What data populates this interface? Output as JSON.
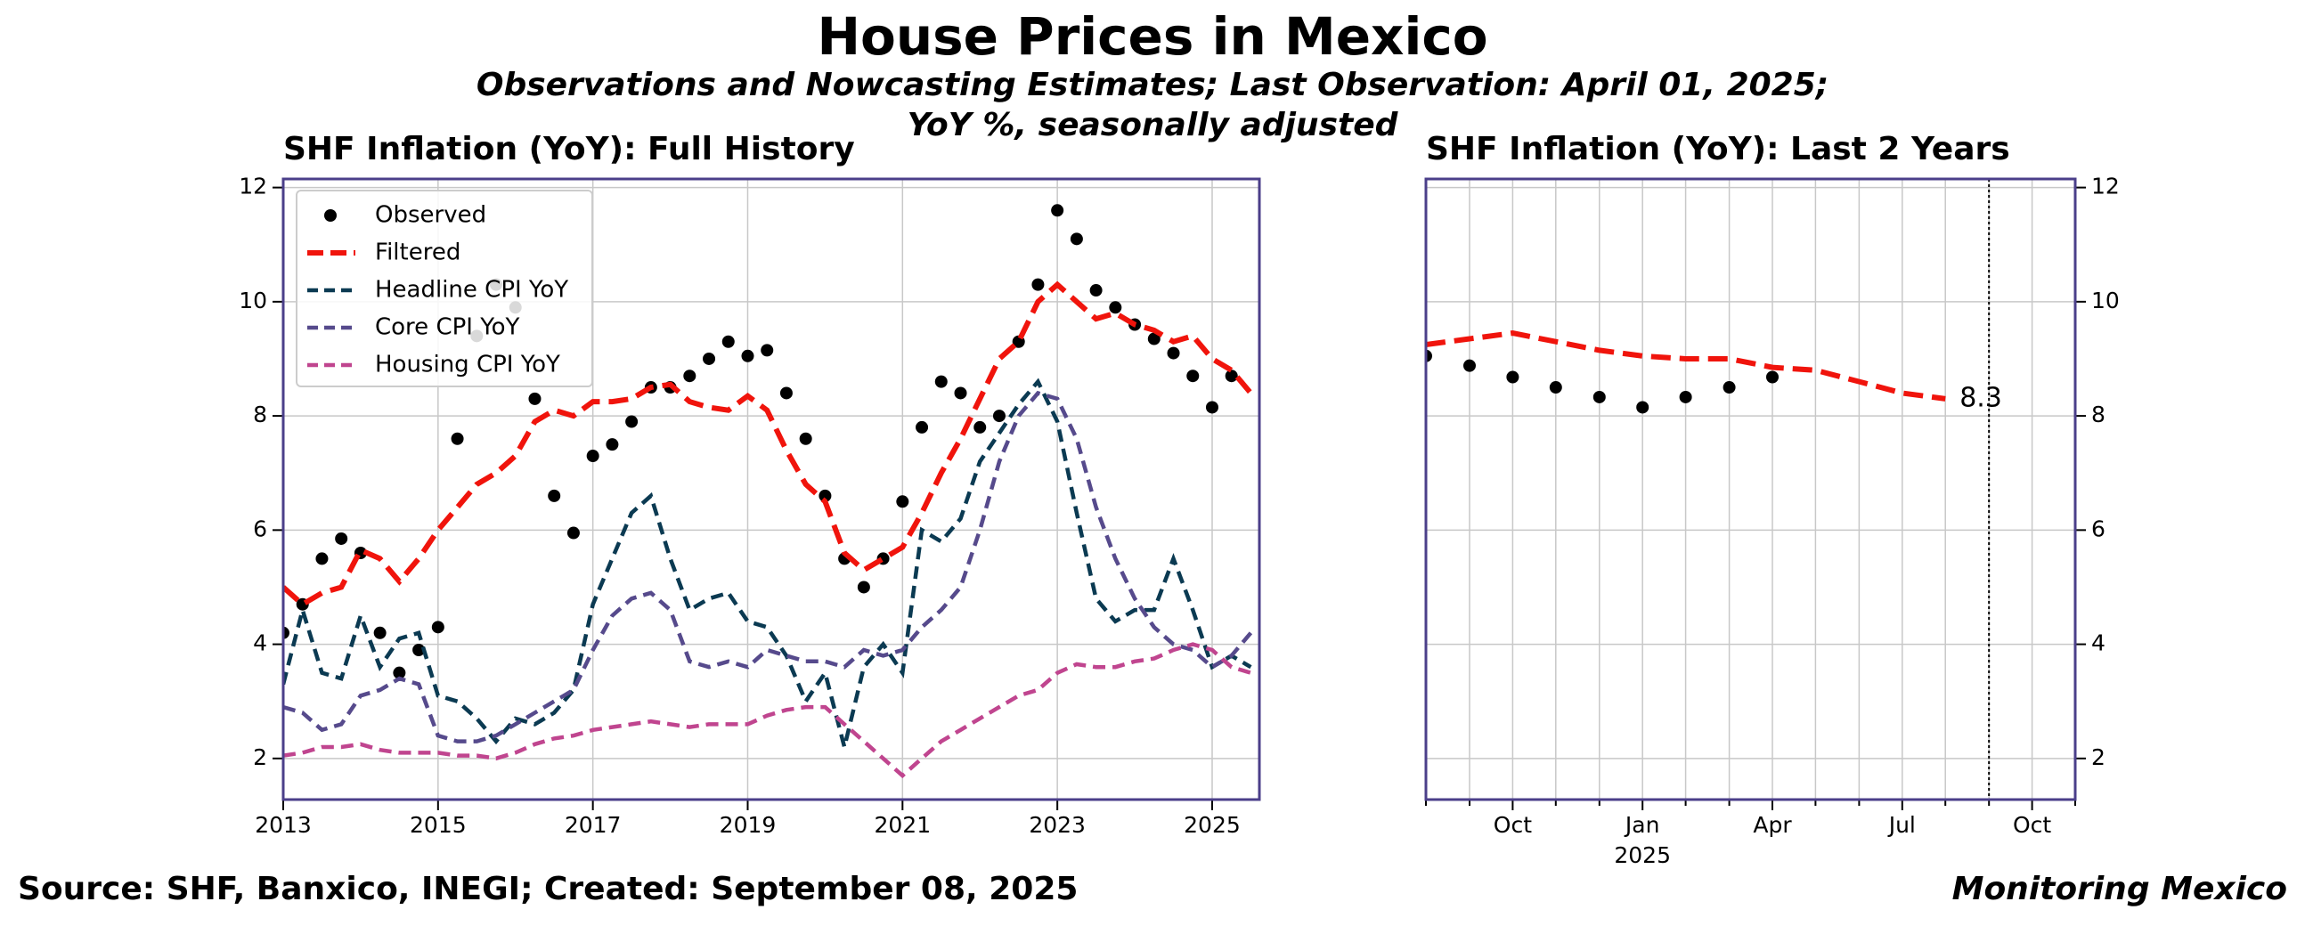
{
  "header": {
    "title": "House Prices in Mexico",
    "subtitle": "Observations and Nowcasting Estimates; Last Observation: April 01, 2025;\nYoY %, seasonally adjusted",
    "source": "Source: SHF, Banxico, INEGI; Created: September 08, 2025",
    "brand": "Monitoring Mexico"
  },
  "chart_data": [
    {
      "type": "line",
      "title": "SHF Inflation (YoY): Full History",
      "legend": "upper left",
      "grid": true,
      "yaxis_side": "left",
      "x": [
        2013.0,
        2013.25,
        2013.5,
        2013.75,
        2014.0,
        2014.25,
        2014.5,
        2014.75,
        2015.0,
        2015.25,
        2015.5,
        2015.75,
        2016.0,
        2016.25,
        2016.5,
        2016.75,
        2017.0,
        2017.25,
        2017.5,
        2017.75,
        2018.0,
        2018.25,
        2018.5,
        2018.75,
        2019.0,
        2019.25,
        2019.5,
        2019.75,
        2020.0,
        2020.25,
        2020.5,
        2020.75,
        2021.0,
        2021.25,
        2021.5,
        2021.75,
        2022.0,
        2022.25,
        2022.5,
        2022.75,
        2023.0,
        2023.25,
        2023.5,
        2023.75,
        2024.0,
        2024.25,
        2024.5,
        2024.75,
        2025.0,
        2025.25,
        2025.5
      ],
      "xlim": [
        2013,
        2025.61
      ],
      "xticks": [
        2013,
        2015,
        2017,
        2019,
        2021,
        2023,
        2025
      ],
      "ylim": [
        1.28,
        12.15
      ],
      "yticks": [
        2,
        4,
        6,
        8,
        10,
        12
      ],
      "series": [
        {
          "name": "Observed",
          "color": "#000000",
          "style": "dots",
          "values": [
            4.2,
            4.7,
            5.5,
            5.85,
            5.6,
            4.2,
            3.5,
            3.9,
            4.3,
            7.6,
            9.4,
            10.3,
            9.9,
            8.3,
            6.6,
            5.95,
            7.3,
            7.5,
            7.9,
            8.5,
            8.5,
            8.7,
            9.0,
            9.3,
            9.05,
            9.15,
            8.4,
            7.6,
            6.6,
            5.5,
            5.0,
            5.5,
            6.5,
            7.8,
            8.6,
            8.4,
            7.8,
            8.0,
            9.3,
            10.3,
            11.6,
            11.1,
            10.2,
            9.9,
            9.6,
            9.35,
            9.1,
            8.7,
            8.15,
            8.7,
            null
          ]
        },
        {
          "name": "Filtered",
          "color": "#f0140c",
          "style": "dashed-thick",
          "values": [
            5.0,
            4.7,
            4.9,
            5.0,
            5.65,
            5.5,
            5.1,
            5.5,
            6.0,
            6.4,
            6.8,
            7.0,
            7.3,
            7.9,
            8.1,
            8.0,
            8.25,
            8.25,
            8.3,
            8.5,
            8.55,
            8.25,
            8.15,
            8.1,
            8.35,
            8.1,
            7.4,
            6.8,
            6.5,
            5.6,
            5.3,
            5.5,
            5.7,
            6.3,
            7.0,
            7.6,
            8.3,
            9.0,
            9.3,
            10.0,
            10.3,
            10.0,
            9.7,
            9.8,
            9.6,
            9.5,
            9.3,
            9.4,
            9.0,
            8.8,
            8.4
          ]
        },
        {
          "name": "Headline CPI YoY",
          "color": "#0b3a52",
          "style": "dashed",
          "values": [
            3.3,
            4.6,
            3.5,
            3.4,
            4.5,
            3.6,
            4.1,
            4.2,
            3.1,
            3.0,
            2.7,
            2.3,
            2.7,
            2.6,
            2.8,
            3.2,
            4.7,
            5.5,
            6.3,
            6.6,
            5.5,
            4.6,
            4.8,
            4.9,
            4.4,
            4.3,
            3.8,
            3.0,
            3.5,
            2.2,
            3.6,
            4.0,
            3.5,
            6.0,
            5.8,
            6.2,
            7.2,
            7.7,
            8.2,
            8.6,
            7.9,
            6.3,
            4.8,
            4.4,
            4.6,
            4.6,
            5.5,
            4.6,
            3.6,
            3.8,
            3.6
          ]
        },
        {
          "name": "Core CPI YoY",
          "color": "#564a8c",
          "style": "dashed",
          "values": [
            2.9,
            2.8,
            2.5,
            2.6,
            3.1,
            3.2,
            3.4,
            3.3,
            2.4,
            2.3,
            2.3,
            2.4,
            2.6,
            2.8,
            3.0,
            3.2,
            3.9,
            4.5,
            4.8,
            4.9,
            4.6,
            3.7,
            3.6,
            3.7,
            3.6,
            3.9,
            3.8,
            3.7,
            3.7,
            3.6,
            3.9,
            3.8,
            3.9,
            4.3,
            4.6,
            5.0,
            6.0,
            7.2,
            8.0,
            8.4,
            8.3,
            7.6,
            6.4,
            5.5,
            4.8,
            4.3,
            4.0,
            3.9,
            3.6,
            3.8,
            4.2
          ]
        },
        {
          "name": "Housing CPI YoY",
          "color": "#c0458f",
          "style": "dashed",
          "values": [
            2.05,
            2.1,
            2.2,
            2.2,
            2.25,
            2.15,
            2.1,
            2.1,
            2.1,
            2.05,
            2.05,
            2.0,
            2.1,
            2.25,
            2.35,
            2.4,
            2.5,
            2.55,
            2.6,
            2.65,
            2.6,
            2.55,
            2.6,
            2.6,
            2.6,
            2.75,
            2.85,
            2.9,
            2.9,
            2.6,
            2.3,
            2.0,
            1.7,
            2.0,
            2.3,
            2.5,
            2.7,
            2.9,
            3.1,
            3.2,
            3.5,
            3.65,
            3.6,
            3.6,
            3.7,
            3.75,
            3.9,
            4.0,
            3.9,
            3.6,
            3.5
          ]
        }
      ]
    },
    {
      "type": "line",
      "title": "SHF Inflation (YoY): Last 2 Years",
      "grid": true,
      "yaxis_side": "right",
      "x": [
        2024.583,
        2024.667,
        2024.75,
        2024.833,
        2024.917,
        2025.0,
        2025.083,
        2025.167,
        2025.25,
        2025.333,
        2025.417,
        2025.5,
        2025.583
      ],
      "xlim": [
        2024.583,
        2025.833
      ],
      "xticks": [
        {
          "value": 2024.75,
          "label": "Oct"
        },
        {
          "value": 2025.0,
          "label": "Jan\n2025"
        },
        {
          "value": 2025.25,
          "label": "Apr"
        },
        {
          "value": 2025.5,
          "label": "Jul"
        },
        {
          "value": 2025.75,
          "label": "Oct"
        }
      ],
      "xminorticks": [
        2024.583,
        2024.667,
        2024.833,
        2024.917,
        2025.083,
        2025.167,
        2025.333,
        2025.417,
        2025.583,
        2025.667,
        2025.833
      ],
      "ylim": [
        1.28,
        12.15
      ],
      "yticks": [
        2,
        4,
        6,
        8,
        10,
        12
      ],
      "vline": 2025.667,
      "annotation": "8.3",
      "series": [
        {
          "name": "Observed",
          "color": "#000000",
          "style": "dots",
          "values": [
            9.05,
            8.88,
            8.68,
            8.5,
            8.33,
            8.15,
            8.33,
            8.5,
            8.68,
            null,
            null,
            null,
            null
          ]
        },
        {
          "name": "Filtered",
          "color": "#f0140c",
          "style": "dashed-thick",
          "values": [
            9.25,
            9.35,
            9.45,
            9.3,
            9.15,
            9.05,
            9.0,
            9.0,
            8.85,
            8.8,
            8.6,
            8.4,
            8.3
          ]
        }
      ]
    }
  ]
}
